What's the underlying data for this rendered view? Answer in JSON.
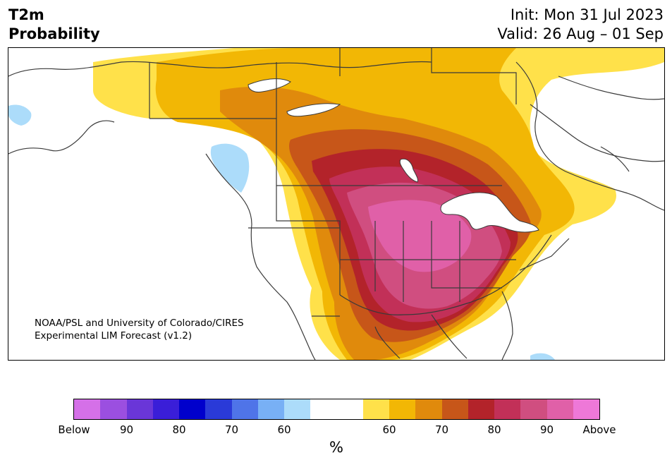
{
  "title": {
    "line1": "T2m",
    "line2": "Probability"
  },
  "init": {
    "line1": "Init: Mon 31 Jul 2023",
    "line2": "Valid: 26 Aug – 01 Sep"
  },
  "credit": {
    "line1": "NOAA/PSL and University of Colorado/CIRES",
    "line2": "Experimental LIM Forecast (v1.2)"
  },
  "colorbar": {
    "colors": [
      "#d570e8",
      "#9b4fe0",
      "#6a36d8",
      "#3a1ed8",
      "#0000cc",
      "#2a3ad8",
      "#4f74e8",
      "#78b0f5",
      "#acdcfa",
      "#ffffff",
      "#ffffff",
      "#ffe14a",
      "#f2b705",
      "#e08a0c",
      "#c75619",
      "#b3232a",
      "#c23058",
      "#d04e80",
      "#e060a8",
      "#ee78d8"
    ],
    "tick_labels": [
      "Below",
      "90",
      "80",
      "70",
      "60",
      "60",
      "70",
      "80",
      "90",
      "Above"
    ],
    "unit": "%"
  },
  "map": {
    "colors": {
      "land": "#ffffff",
      "p50_60": "#ffe14a",
      "p60_65": "#f2b705",
      "p65_70": "#e08a0c",
      "p70_75": "#c75619",
      "p75_80": "#b3232a",
      "p80_85": "#c23058",
      "p85_90": "#d04e80",
      "p90_95": "#e060a8",
      "cold60": "#acdcfa",
      "border": "#3a3a3a"
    }
  }
}
